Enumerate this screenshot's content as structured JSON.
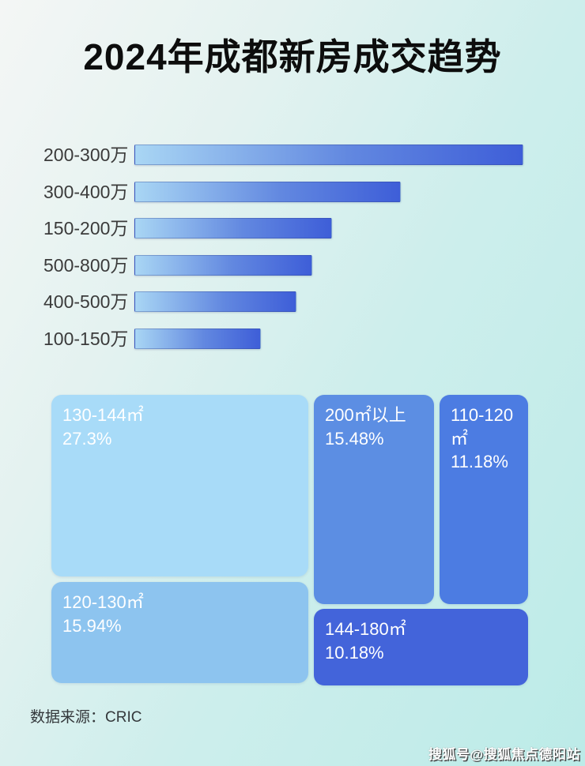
{
  "title": "2024年成都新房成交趋势",
  "colors": {
    "background_start": "#f4f6f5",
    "background_end": "#bcebe8",
    "bar_gradient_start": "#a9d6f4",
    "bar_gradient_end": "#3e5ed8",
    "title_color": "#0d0d0d",
    "bar_label_color": "#3b3b3b",
    "treemap_text_color": "#ffffff"
  },
  "bar_chart": {
    "items": [
      {
        "label": "200-300万",
        "width_pct": 100
      },
      {
        "label": "300-400万",
        "width_pct": 68.4
      },
      {
        "label": "150-200万",
        "width_pct": 50.6
      },
      {
        "label": "500-800万",
        "width_pct": 45.5
      },
      {
        "label": "400-500万",
        "width_pct": 41.4
      },
      {
        "label": "100-150万",
        "width_pct": 32.2
      }
    ]
  },
  "treemap": {
    "items": [
      {
        "label": "130-144㎡",
        "value": "27.3%",
        "color": "#a8dbf8"
      },
      {
        "label": "120-130㎡",
        "value": "15.94%",
        "color": "#8dc4ef"
      },
      {
        "label": "200㎡以上",
        "value": "15.48%",
        "color": "#5c8ee3"
      },
      {
        "label": "110-120㎡",
        "value": "11.18%",
        "color": "#4c7ce2"
      },
      {
        "label": "144-180㎡",
        "value": "10.18%",
        "color": "#4364da"
      }
    ]
  },
  "footer": {
    "source_label": "数据来源：CRIC"
  },
  "watermark": "搜狐号@搜狐焦点德阳站",
  "chart_data": [
    {
      "type": "bar",
      "orientation": "horizontal",
      "title": "2024年成都新房成交趋势",
      "categories": [
        "200-300万",
        "300-400万",
        "150-200万",
        "500-800万",
        "400-500万",
        "100-150万"
      ],
      "values": [
        100,
        68.4,
        50.6,
        45.5,
        41.4,
        32.2
      ],
      "value_note": "relative bar length as % of longest bar; chart shows no numeric axis or data labels",
      "xlabel": "",
      "ylabel": "",
      "grid": false,
      "legend": false
    },
    {
      "type": "treemap",
      "title": "",
      "items": [
        {
          "label": "130-144㎡",
          "value_pct": 27.3
        },
        {
          "label": "120-130㎡",
          "value_pct": 15.94
        },
        {
          "label": "200㎡以上",
          "value_pct": 15.48
        },
        {
          "label": "110-120㎡",
          "value_pct": 11.18
        },
        {
          "label": "144-180㎡",
          "value_pct": 10.18
        }
      ],
      "legend": false
    }
  ]
}
